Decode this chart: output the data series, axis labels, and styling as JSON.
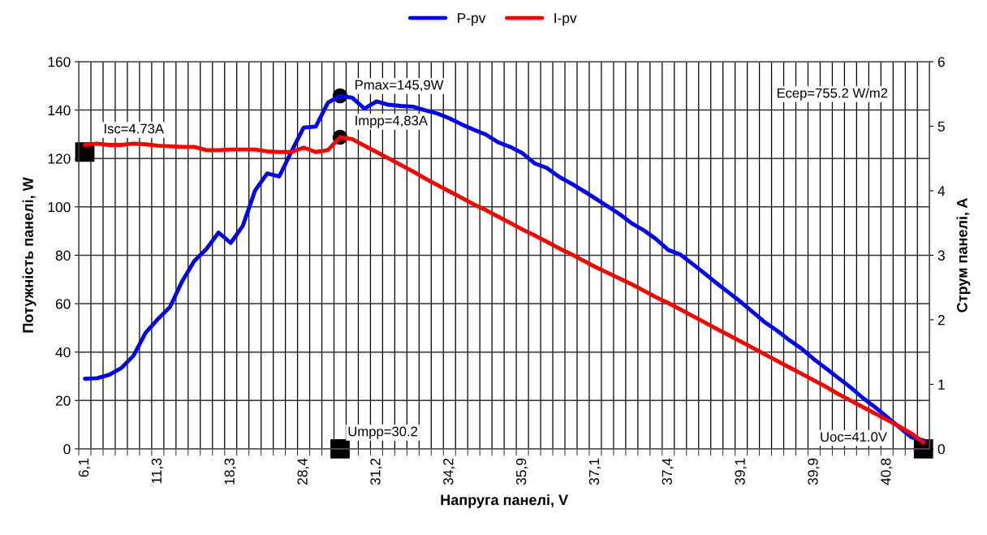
{
  "chart_data": {
    "type": "line",
    "xlabel": "Напруга панелі, V",
    "ylabel": "Потужність панелі, W",
    "y2label": "Струм панелі, A",
    "categories": [
      "6,1",
      null,
      null,
      null,
      null,
      null,
      "11,3",
      null,
      null,
      null,
      null,
      null,
      "18,3",
      null,
      null,
      null,
      null,
      null,
      "28,4",
      null,
      null,
      null,
      null,
      null,
      "31,2",
      null,
      null,
      null,
      null,
      null,
      "34,2",
      null,
      null,
      null,
      null,
      null,
      "35,9",
      null,
      null,
      null,
      null,
      null,
      "37,1",
      null,
      null,
      null,
      null,
      null,
      "37,4",
      null,
      null,
      null,
      null,
      null,
      "39,1",
      null,
      null,
      null,
      null,
      null,
      "39,9",
      null,
      null,
      null,
      null,
      null,
      "40,8",
      null,
      null,
      null
    ],
    "series": [
      {
        "name": "P-pv",
        "color": "#0000ff",
        "values": [
          29.0,
          29.2,
          30.6,
          33.4,
          38.5,
          48.0,
          53.6,
          58.6,
          69.2,
          77.6,
          82.6,
          89.4,
          85.1,
          92.2,
          106.7,
          113.8,
          112.6,
          122.9,
          132.8,
          133.2,
          143.1,
          145.9,
          145.1,
          140.6,
          143.6,
          142.2,
          141.7,
          141.4,
          139.9,
          138.6,
          136.6,
          134.1,
          131.9,
          129.9,
          126.7,
          124.8,
          122.2,
          118.0,
          116.1,
          112.5,
          109.7,
          106.7,
          103.5,
          100.3,
          97.0,
          93.2,
          90.3,
          86.7,
          82.2,
          80.3,
          76.4,
          72.5,
          68.4,
          64.5,
          60.6,
          56.4,
          52.1,
          48.7,
          44.8,
          41.3,
          37.0,
          33.2,
          29.3,
          25.4,
          21.1,
          17.3,
          13.2,
          9.0,
          4.8,
          3.5
        ]
      },
      {
        "name": "I-pv",
        "color": "#ff0000",
        "axis": "y2",
        "values": [
          4.71,
          4.73,
          4.71,
          4.71,
          4.73,
          4.72,
          4.7,
          4.69,
          4.68,
          4.68,
          4.63,
          4.63,
          4.64,
          4.64,
          4.64,
          4.61,
          4.6,
          4.6,
          4.67,
          4.6,
          4.63,
          4.83,
          4.8,
          4.7,
          4.6,
          4.5,
          4.4,
          4.3,
          4.19,
          4.09,
          3.99,
          3.89,
          3.79,
          3.7,
          3.6,
          3.5,
          3.4,
          3.31,
          3.21,
          3.11,
          3.02,
          2.92,
          2.82,
          2.73,
          2.64,
          2.55,
          2.45,
          2.35,
          2.26,
          2.16,
          2.06,
          1.96,
          1.86,
          1.76,
          1.66,
          1.56,
          1.46,
          1.36,
          1.26,
          1.16,
          1.06,
          0.96,
          0.85,
          0.75,
          0.65,
          0.55,
          0.45,
          0.35,
          0.24,
          0.1
        ]
      },
      {
        "type": "scatter",
        "marker": "square",
        "color": "#000000",
        "axis": "y2",
        "values": [
          4.6,
          null,
          null,
          null,
          null,
          null,
          null,
          null,
          null,
          null,
          null,
          null,
          null,
          null,
          null,
          null,
          null,
          null,
          null,
          null,
          null,
          null,
          null,
          null,
          null,
          null,
          null,
          null,
          null,
          null,
          null,
          null,
          null,
          null,
          null,
          null,
          null,
          null,
          null,
          null,
          null,
          null,
          null,
          null,
          null,
          null,
          null,
          null,
          null,
          null,
          null,
          null,
          null,
          null,
          null,
          null,
          null,
          null,
          null,
          null,
          null,
          null,
          null,
          null,
          null,
          null,
          null,
          null,
          null,
          null
        ]
      },
      {
        "type": "scatter",
        "marker": "circle",
        "color": "#000000",
        "values": [
          null,
          null,
          null,
          null,
          null,
          null,
          null,
          null,
          null,
          null,
          null,
          null,
          null,
          null,
          null,
          null,
          null,
          null,
          null,
          null,
          null,
          145.9,
          null,
          null,
          null,
          null,
          null,
          null,
          null,
          null,
          null,
          null,
          null,
          null,
          null,
          null,
          null,
          null,
          null,
          null,
          null,
          null,
          null,
          null,
          null,
          null,
          null,
          null,
          null,
          null,
          null,
          null,
          null,
          null,
          null,
          null,
          null,
          null,
          null,
          null,
          null,
          null,
          null,
          null,
          null,
          null,
          null,
          null,
          null,
          null
        ]
      },
      {
        "type": "scatter",
        "marker": "circle",
        "color": "#000000",
        "axis": "y2",
        "values": [
          null,
          null,
          null,
          null,
          null,
          null,
          null,
          null,
          null,
          null,
          null,
          null,
          null,
          null,
          null,
          null,
          null,
          null,
          null,
          null,
          null,
          4.83,
          null,
          null,
          null,
          null,
          null,
          null,
          null,
          null,
          null,
          null,
          null,
          null,
          null,
          null,
          null,
          null,
          null,
          null,
          null,
          null,
          null,
          null,
          null,
          null,
          null,
          null,
          null,
          null,
          null,
          null,
          null,
          null,
          null,
          null,
          null,
          null,
          null,
          null,
          null,
          null,
          null,
          null,
          null,
          null,
          null,
          null,
          null,
          null
        ]
      },
      {
        "type": "scatter",
        "marker": "square",
        "color": "#000000",
        "values": [
          null,
          null,
          null,
          null,
          null,
          null,
          null,
          null,
          null,
          null,
          null,
          null,
          null,
          null,
          null,
          null,
          null,
          null,
          null,
          null,
          null,
          0,
          null,
          null,
          null,
          null,
          null,
          null,
          null,
          null,
          null,
          null,
          null,
          null,
          null,
          null,
          null,
          null,
          null,
          null,
          null,
          null,
          null,
          null,
          null,
          null,
          null,
          null,
          null,
          null,
          null,
          null,
          null,
          null,
          null,
          null,
          null,
          null,
          null,
          null,
          null,
          null,
          null,
          null,
          null,
          null,
          null,
          null,
          null,
          0
        ]
      }
    ],
    "ylim": [
      0,
      160
    ],
    "yticks": [
      0,
      20,
      40,
      60,
      80,
      100,
      120,
      140,
      160
    ],
    "y2lim": [
      0,
      6
    ],
    "y2ticks": [
      0,
      1,
      2,
      3,
      4,
      5,
      6
    ],
    "grid": true,
    "legend": "top",
    "annotations": [
      "Isc=4.73A",
      "Pmax=145,9W",
      "Impp=4,83A",
      "Umpp=30.2",
      "Uoc=41.0V",
      "Есер=755.2 W/m2"
    ]
  }
}
